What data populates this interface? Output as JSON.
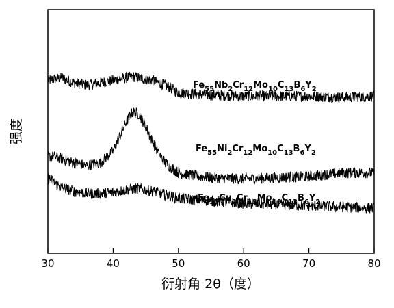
{
  "chart_data": {
    "type": "line",
    "title": "",
    "xlabel": "衍射角 2θ（度）",
    "ylabel": "强度",
    "xlim": [
      30,
      80
    ],
    "xticks": [
      30,
      40,
      50,
      60,
      70,
      80
    ],
    "yticks_shown": false,
    "grid": false,
    "legend": "none",
    "series": [
      {
        "name": "Fe55Nb2Cr12Mo10C13B6Y2",
        "name_parts": [
          {
            "t": "Fe",
            "sub": false
          },
          {
            "t": "55",
            "sub": true
          },
          {
            "t": "Nb",
            "sub": false
          },
          {
            "t": "2",
            "sub": true
          },
          {
            "t": "Cr",
            "sub": false
          },
          {
            "t": "12",
            "sub": true
          },
          {
            "t": "Mo",
            "sub": false
          },
          {
            "t": "10",
            "sub": true
          },
          {
            "t": "C",
            "sub": false
          },
          {
            "t": "13",
            "sub": true
          },
          {
            "t": "B",
            "sub": false
          },
          {
            "t": "6",
            "sub": true
          },
          {
            "t": "Y",
            "sub": false
          },
          {
            "t": "2",
            "sub": true
          }
        ],
        "x": [
          30,
          32,
          34,
          36,
          38,
          40,
          42,
          43,
          44,
          46,
          48,
          50,
          52,
          55,
          60,
          65,
          70,
          75,
          80
        ],
        "y": [
          0.71,
          0.72,
          0.7,
          0.69,
          0.7,
          0.71,
          0.72,
          0.725,
          0.72,
          0.71,
          0.69,
          0.66,
          0.655,
          0.65,
          0.645,
          0.645,
          0.645,
          0.64,
          0.645
        ]
      },
      {
        "name": "Fe55Ni2Cr12Mo10C13B6Y2",
        "name_parts": [
          {
            "t": "Fe",
            "sub": false
          },
          {
            "t": "55",
            "sub": true
          },
          {
            "t": "Ni",
            "sub": false
          },
          {
            "t": "2",
            "sub": true
          },
          {
            "t": "Cr",
            "sub": false
          },
          {
            "t": "12",
            "sub": true
          },
          {
            "t": "Mo",
            "sub": false
          },
          {
            "t": "10",
            "sub": true
          },
          {
            "t": "C",
            "sub": false
          },
          {
            "t": "13",
            "sub": true
          },
          {
            "t": "B",
            "sub": false
          },
          {
            "t": "6",
            "sub": true
          },
          {
            "t": "Y",
            "sub": false
          },
          {
            "t": "2",
            "sub": true
          }
        ],
        "x": [
          30,
          32,
          34,
          36,
          38,
          40,
          41,
          42,
          43,
          44,
          45,
          46,
          47,
          48,
          50,
          52,
          55,
          60,
          65,
          70,
          75,
          80
        ],
        "y": [
          0.4,
          0.39,
          0.37,
          0.36,
          0.37,
          0.42,
          0.48,
          0.54,
          0.58,
          0.57,
          0.52,
          0.46,
          0.41,
          0.37,
          0.33,
          0.32,
          0.31,
          0.305,
          0.31,
          0.315,
          0.33,
          0.33
        ]
      },
      {
        "name": "Fe55Cu2Cr12Mo10C13B6Y2",
        "name_parts": [
          {
            "t": "Fe",
            "sub": false
          },
          {
            "t": "55",
            "sub": true
          },
          {
            "t": "Cu",
            "sub": false
          },
          {
            "t": "2",
            "sub": true
          },
          {
            "t": "Cr",
            "sub": false
          },
          {
            "t": "12",
            "sub": true
          },
          {
            "t": "Mo",
            "sub": false
          },
          {
            "t": "10",
            "sub": true
          },
          {
            "t": "C",
            "sub": false
          },
          {
            "t": "13",
            "sub": true
          },
          {
            "t": "B",
            "sub": false
          },
          {
            "t": "6",
            "sub": true
          },
          {
            "t": "Y",
            "sub": false
          },
          {
            "t": "2",
            "sub": true
          }
        ],
        "x": [
          30,
          32,
          34,
          36,
          38,
          40,
          42,
          43,
          44,
          46,
          48,
          50,
          55,
          60,
          65,
          70,
          75,
          80
        ],
        "y": [
          0.31,
          0.27,
          0.255,
          0.245,
          0.245,
          0.25,
          0.26,
          0.265,
          0.265,
          0.255,
          0.24,
          0.225,
          0.215,
          0.205,
          0.2,
          0.195,
          0.19,
          0.185
        ]
      }
    ]
  }
}
